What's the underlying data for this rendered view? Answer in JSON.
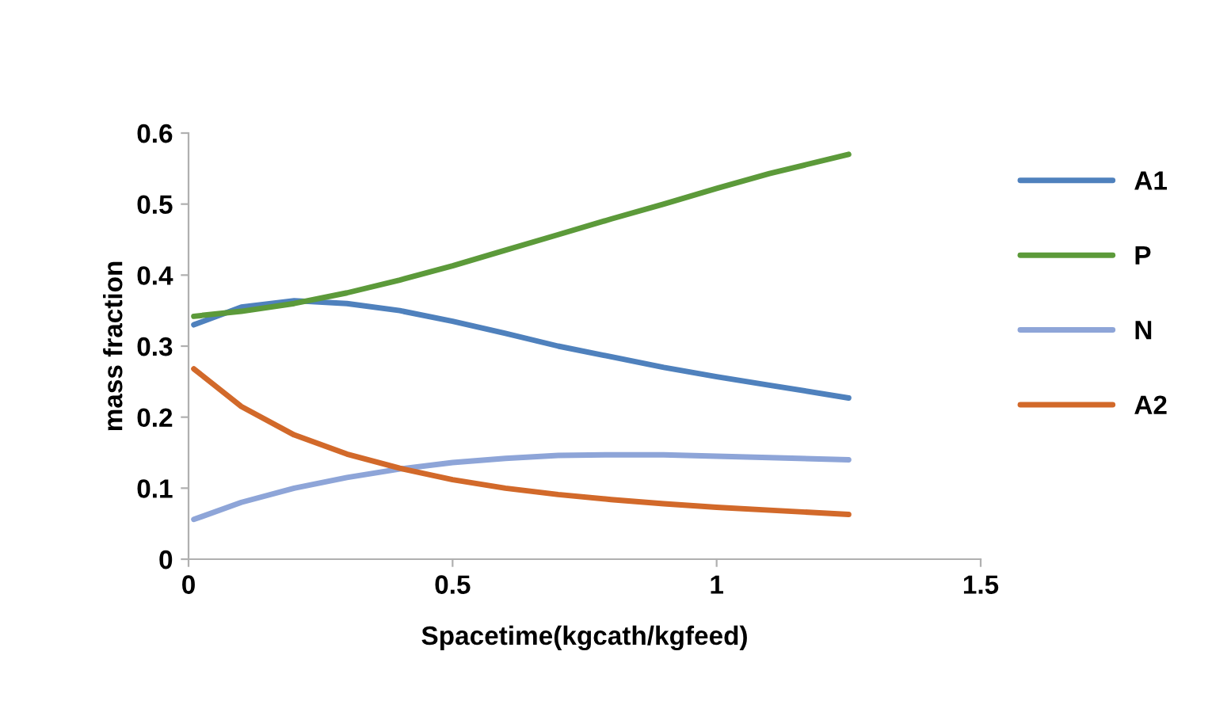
{
  "chart_data": {
    "type": "line",
    "xlabel": "Spacetime(kgcath/kgfeed)",
    "ylabel": "mass fraction",
    "xlim": [
      0,
      1.5
    ],
    "xticks": [
      0,
      0.5,
      1,
      1.5
    ],
    "ylim": [
      0,
      0.6
    ],
    "yticks": [
      0,
      0.1,
      0.2,
      0.3,
      0.4,
      0.5,
      0.6
    ],
    "grid": false,
    "legend": "right",
    "marker": "none",
    "line_style": "solid",
    "x": [
      0.01,
      0.1,
      0.2,
      0.3,
      0.4,
      0.5,
      0.6,
      0.7,
      0.8,
      0.9,
      1.0,
      1.1,
      1.25
    ],
    "series": [
      {
        "name": "A1",
        "color": "#4f81bd",
        "values": [
          0.33,
          0.355,
          0.364,
          0.36,
          0.35,
          0.335,
          0.318,
          0.3,
          0.285,
          0.27,
          0.257,
          0.245,
          0.227
        ]
      },
      {
        "name": "P",
        "color": "#5c9a3a",
        "values": [
          0.342,
          0.349,
          0.36,
          0.375,
          0.393,
          0.413,
          0.435,
          0.457,
          0.479,
          0.5,
          0.522,
          0.543,
          0.57
        ]
      },
      {
        "name": "N",
        "color": "#8ea5d8",
        "values": [
          0.056,
          0.08,
          0.1,
          0.115,
          0.127,
          0.136,
          0.142,
          0.146,
          0.147,
          0.147,
          0.145,
          0.143,
          0.14
        ]
      },
      {
        "name": "A2",
        "color": "#d2692a",
        "values": [
          0.268,
          0.215,
          0.175,
          0.148,
          0.128,
          0.112,
          0.1,
          0.091,
          0.084,
          0.078,
          0.073,
          0.069,
          0.063
        ]
      }
    ]
  }
}
